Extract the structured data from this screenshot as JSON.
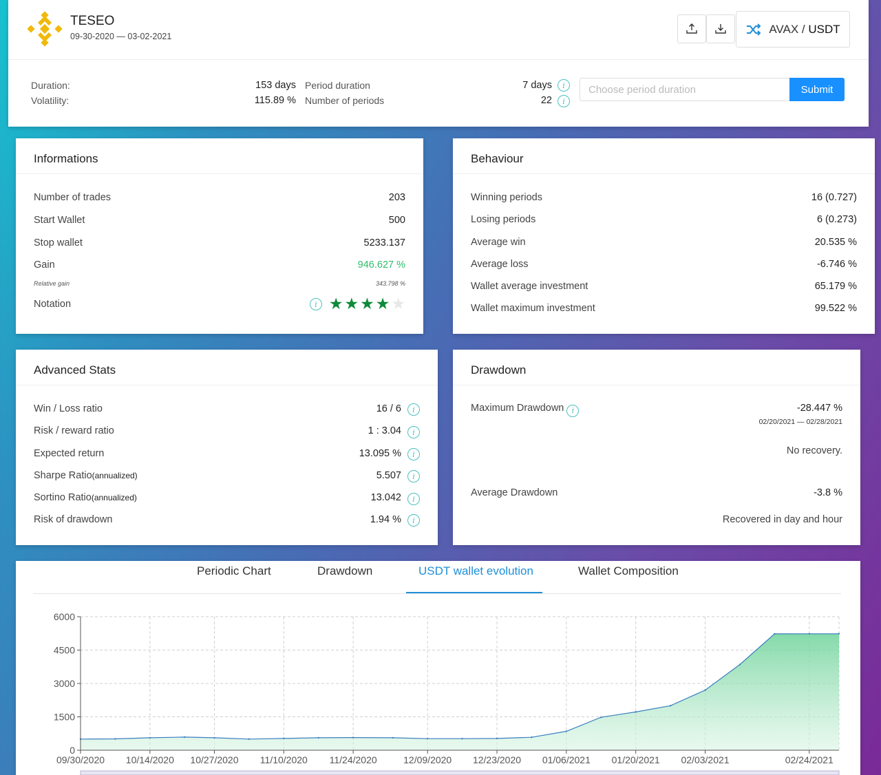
{
  "header": {
    "strategy_name": "TESEO",
    "date_range": "09-30-2020 — 03-02-2021",
    "pair_base": "AVAX",
    "pair_sep": " / ",
    "pair_quote": "USDT",
    "duration_label": "Duration:",
    "duration_value": "153 days",
    "volatility_label": "Volatility:",
    "volatility_value": "115.89 %",
    "period_duration_label": "Period duration",
    "period_duration_value": "7 days",
    "number_of_periods_label": "Number of periods",
    "number_of_periods_value": "22",
    "period_input_placeholder": "Choose period duration",
    "submit_label": "Submit"
  },
  "informations": {
    "title": "Informations",
    "rows": [
      {
        "label": "Number of trades",
        "value": "203"
      },
      {
        "label": "Start Wallet",
        "value": "500"
      },
      {
        "label": "Stop wallet",
        "value": "5233.137"
      },
      {
        "label": "Gain",
        "value": "946.627 %"
      },
      {
        "label": "Relative gain",
        "value": "343.798 %"
      },
      {
        "label": "Notation",
        "value": ""
      }
    ],
    "notation_stars": 4,
    "notation_max": 5
  },
  "behaviour": {
    "title": "Behaviour",
    "rows": [
      {
        "label": "Winning periods",
        "value": "16 (0.727)"
      },
      {
        "label": "Losing periods",
        "value": "6 (0.273)"
      },
      {
        "label": "Average win",
        "value": "20.535 %"
      },
      {
        "label": "Average loss",
        "value": "-6.746 %"
      },
      {
        "label": "Wallet average investment",
        "value": "65.179 %"
      },
      {
        "label": "Wallet maximum investment",
        "value": "99.522 %"
      }
    ]
  },
  "advanced_stats": {
    "title": "Advanced Stats",
    "rows": [
      {
        "label": "Win / Loss ratio",
        "suffix": "",
        "value": "16 / 6"
      },
      {
        "label": "Risk / reward ratio",
        "suffix": "",
        "value": "1 : 3.04"
      },
      {
        "label": "Expected return",
        "suffix": "",
        "value": "13.095 %"
      },
      {
        "label": "Sharpe Ratio",
        "suffix": "(annualized)",
        "value": "5.507"
      },
      {
        "label": "Sortino Ratio",
        "suffix": "(annualized)",
        "value": "13.042"
      },
      {
        "label": "Risk of drawdown",
        "suffix": "",
        "value": "1.94 %"
      }
    ]
  },
  "drawdown": {
    "title": "Drawdown",
    "max_label": "Maximum Drawdown",
    "max_value": "-28.447 %",
    "max_dates": "02/20/2021 — 02/28/2021",
    "max_recovery": "No recovery.",
    "avg_label": "Average Drawdown",
    "avg_value": "-3.8 %",
    "avg_recovery": "Recovered in day and hour"
  },
  "tabs": [
    {
      "label": "Periodic Chart",
      "active": false
    },
    {
      "label": "Drawdown",
      "active": false
    },
    {
      "label": "USDT wallet evolution",
      "active": true
    },
    {
      "label": "Wallet Composition",
      "active": false
    }
  ],
  "colors": {
    "accent": "#1890ff",
    "gain_green": "#2ebd6b",
    "star_green": "#0f8a3a",
    "info_teal": "#4cc0c0",
    "logo_gold": "#f0b90b",
    "chart_line": "#3a7ec0"
  },
  "chart_data": {
    "type": "area",
    "ylim": [
      0,
      6000
    ],
    "yticks": [
      0,
      1500,
      3000,
      4500,
      6000
    ],
    "xticks": [
      "09/30/2020",
      "10/14/2020",
      "10/27/2020",
      "11/10/2020",
      "11/24/2020",
      "12/09/2020",
      "12/23/2020",
      "01/06/2021",
      "01/20/2021",
      "02/03/2021",
      "02/24/2021"
    ],
    "grid": true,
    "series": [
      {
        "x": [
          "09/30/2020",
          "10/07/2020",
          "10/14/2020",
          "10/21/2020",
          "10/27/2020",
          "11/03/2020",
          "11/10/2020",
          "11/17/2020",
          "11/24/2020",
          "12/02/2020",
          "12/09/2020",
          "12/16/2020",
          "12/23/2020",
          "12/30/2020",
          "01/06/2021",
          "01/13/2021",
          "01/20/2021",
          "01/27/2021",
          "02/03/2021",
          "02/10/2021",
          "02/17/2021",
          "02/24/2021",
          "03/02/2021"
        ],
        "values": [
          500,
          510,
          560,
          590,
          560,
          500,
          530,
          560,
          570,
          560,
          520,
          520,
          530,
          580,
          850,
          1480,
          1720,
          2000,
          2700,
          3850,
          5230,
          5233,
          5233
        ]
      }
    ]
  }
}
